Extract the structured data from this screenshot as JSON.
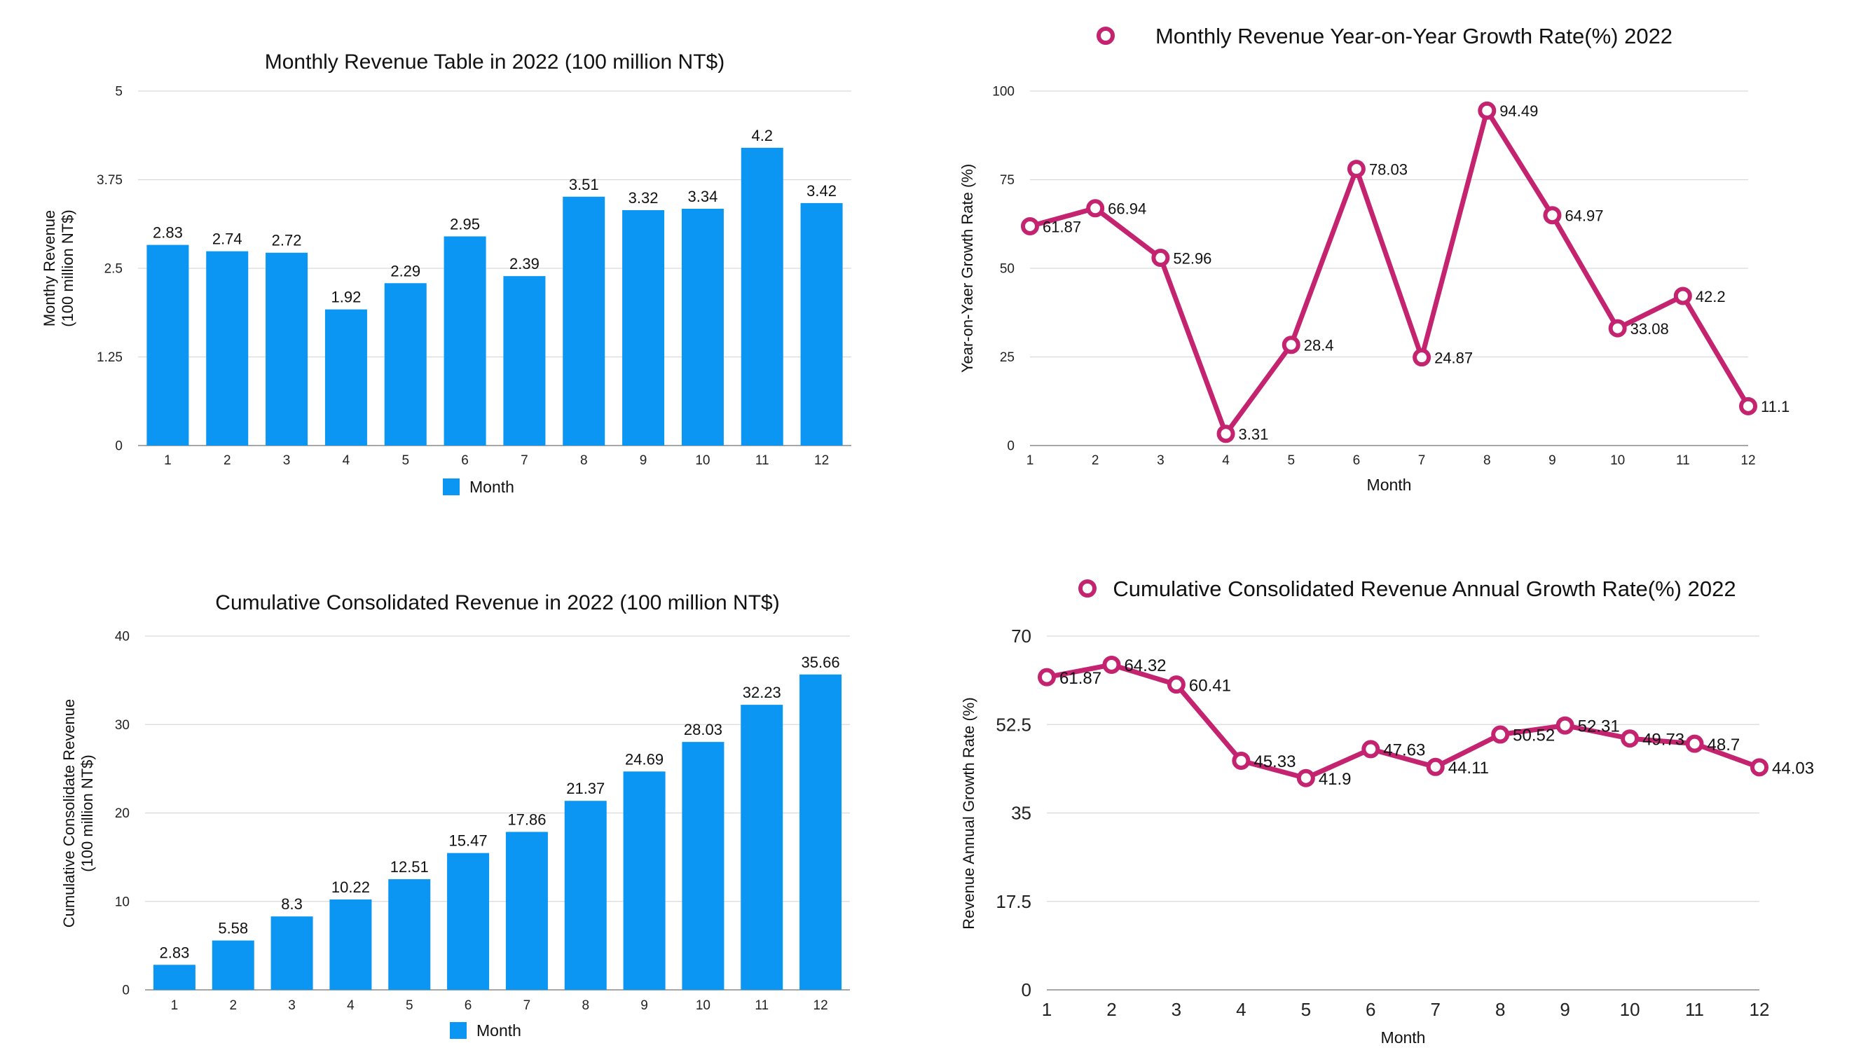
{
  "chart_data": [
    {
      "type": "bar",
      "title": "Monthly Revenue Table in 2022 (100 million NT$)",
      "ylabel": [
        "Monthy Revenue",
        "(100 million NT$)"
      ],
      "xlabel": "",
      "ylim": [
        0,
        5
      ],
      "yticks": [
        "0",
        "1.25",
        "2.5",
        "3.75",
        "5"
      ],
      "categories": [
        "1",
        "2",
        "3",
        "4",
        "5",
        "6",
        "7",
        "8",
        "9",
        "10",
        "11",
        "12"
      ],
      "series": [
        {
          "name": "Month",
          "values": [
            2.83,
            2.74,
            2.72,
            1.92,
            2.29,
            2.95,
            2.39,
            3.51,
            3.32,
            3.34,
            4.2,
            3.42
          ]
        }
      ],
      "data_labels": [
        "2.83",
        "2.74",
        "2.72",
        "1.92",
        "2.29",
        "2.95",
        "2.39",
        "3.51",
        "3.32",
        "3.34",
        "4.2",
        "3.42"
      ],
      "legend": "bottom",
      "color": "#0a96f2",
      "grid": true
    },
    {
      "type": "line",
      "title": "Monthly Revenue Year-on-Year Growth Rate(%) 2022",
      "ylabel": [
        "Year-on-Yaer Growth Rate (%)"
      ],
      "xlabel": "Month",
      "ylim": [
        0,
        100
      ],
      "yticks": [
        "0",
        "25",
        "50",
        "75",
        "100"
      ],
      "categories": [
        "1",
        "2",
        "3",
        "4",
        "5",
        "6",
        "7",
        "8",
        "9",
        "10",
        "11",
        "12"
      ],
      "series": [
        {
          "name": "",
          "values": [
            61.87,
            66.94,
            52.96,
            3.31,
            28.4,
            78.03,
            24.87,
            94.49,
            64.97,
            33.08,
            42.2,
            11.1
          ]
        }
      ],
      "data_labels": [
        "61.87",
        "66.94",
        "52.96",
        "3.31",
        "28.4",
        "78.03",
        "24.87",
        "94.49",
        "64.97",
        "33.08",
        "42.2",
        "11.1"
      ],
      "legend": "top",
      "color": "#c4246f",
      "grid": true
    },
    {
      "type": "bar",
      "title": "Cumulative Consolidated Revenue in 2022 (100 million NT$)",
      "ylabel": [
        "Cumulative Consolidate Revenue",
        "(100 million NT$)"
      ],
      "xlabel": "",
      "ylim": [
        0,
        40
      ],
      "yticks": [
        "0",
        "10",
        "20",
        "30",
        "40"
      ],
      "categories": [
        "1",
        "2",
        "3",
        "4",
        "5",
        "6",
        "7",
        "8",
        "9",
        "10",
        "11",
        "12"
      ],
      "series": [
        {
          "name": "Month",
          "values": [
            2.83,
            5.58,
            8.3,
            10.22,
            12.51,
            15.47,
            17.86,
            21.37,
            24.69,
            28.03,
            32.23,
            35.66
          ]
        }
      ],
      "data_labels": [
        "2.83",
        "5.58",
        "8.3",
        "10.22",
        "12.51",
        "15.47",
        "17.86",
        "21.37",
        "24.69",
        "28.03",
        "32.23",
        "35.66"
      ],
      "legend": "bottom",
      "color": "#0a96f2",
      "grid": true
    },
    {
      "type": "line",
      "title": "Cumulative Consolidated Revenue Annual Growth Rate(%) 2022",
      "ylabel": [
        "Revenue Annual Growth Rate (%)"
      ],
      "xlabel": "Month",
      "ylim": [
        0,
        70
      ],
      "yticks": [
        "0",
        "17.5",
        "35",
        "52.5",
        "70"
      ],
      "categories": [
        "1",
        "2",
        "3",
        "4",
        "5",
        "6",
        "7",
        "8",
        "9",
        "10",
        "11",
        "12"
      ],
      "series": [
        {
          "name": "",
          "values": [
            61.87,
            64.32,
            60.41,
            45.33,
            41.9,
            47.63,
            44.11,
            50.52,
            52.31,
            49.73,
            48.7,
            44.03
          ]
        }
      ],
      "data_labels": [
        "61.87",
        "64.32",
        "60.41",
        "45.33",
        "41.9",
        "47.63",
        "44.11",
        "50.52",
        "52.31",
        "49.73",
        "48.7",
        "44.03"
      ],
      "legend": "top",
      "color": "#c4246f",
      "grid": true
    }
  ]
}
